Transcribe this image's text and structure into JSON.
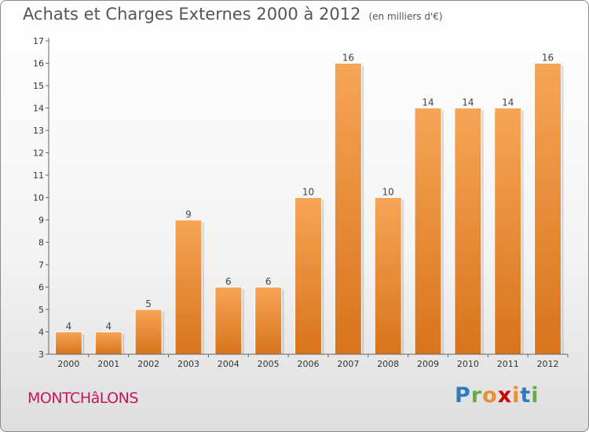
{
  "header": {
    "title": "Achats et Charges Externes 2000 à 2012",
    "unit": "(en milliers d'€)"
  },
  "footer": {
    "commune": "MONTCHâLONS",
    "brand": {
      "text": "Proxiti",
      "letter_colors": [
        "#2e7bc4",
        "#6aa84f",
        "#e69138",
        "#cc0000",
        "#e69138",
        "#2e7bc4",
        "#6aa84f"
      ]
    }
  },
  "colors": {
    "bar_light": "#f6a556",
    "bar_dark": "#d8741c",
    "axis": "#666666"
  },
  "chart_data": {
    "type": "bar",
    "title": "Achats et Charges Externes 2000 à 2012",
    "subtitle": "(en milliers d'€)",
    "xlabel": "",
    "ylabel": "",
    "categories": [
      "2000",
      "2001",
      "2002",
      "2003",
      "2004",
      "2005",
      "2006",
      "2007",
      "2008",
      "2009",
      "2010",
      "2011",
      "2012"
    ],
    "values": [
      4,
      4,
      5,
      9,
      6,
      6,
      10,
      16,
      10,
      14,
      14,
      14,
      16
    ],
    "ylim": [
      3,
      17
    ],
    "yticks": [
      3,
      4,
      5,
      6,
      7,
      8,
      9,
      10,
      11,
      12,
      13,
      14,
      15,
      16,
      17
    ],
    "grid": false,
    "legend": "none"
  }
}
